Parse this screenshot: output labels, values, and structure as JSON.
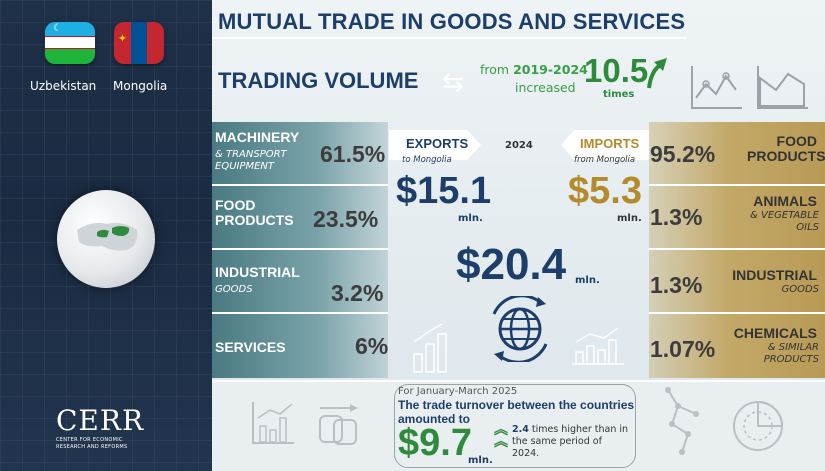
{
  "left": {
    "countries": [
      {
        "name": "Uzbekistan"
      },
      {
        "name": "Mongolia"
      }
    ],
    "logo": {
      "text": "CERR",
      "subtitle": "CENTER FOR ECONOMIC RESEARCH AND REFORMS"
    }
  },
  "header": {
    "title": "MUTUAL TRADE IN GOODS AND SERVICES"
  },
  "trading_volume": {
    "label": "TRADING VOLUME",
    "from_prefix": "from",
    "period": "2019-2024",
    "increased": "increased",
    "factor": "10.5",
    "times": "times"
  },
  "exports": {
    "label": "EXPORTS",
    "sub": "to Mongolia",
    "value": "$15.1",
    "unit": "mln.",
    "items": [
      {
        "name": "MACHINERY",
        "sub": "& TRANSPORT EQUIPMENT",
        "share": "61.5%"
      },
      {
        "name": "FOOD PRODUCTS",
        "sub": "",
        "share": "23.5%"
      },
      {
        "name": "INDUSTRIAL",
        "sub": "GOODS",
        "share": "3.2%"
      },
      {
        "name": "SERVICES",
        "sub": "",
        "share": "6%"
      }
    ]
  },
  "imports": {
    "label": "IMPORTS",
    "sub": "from Mongolia",
    "value": "$5.3",
    "unit": "mln.",
    "items": [
      {
        "name": "FOOD PRODUCTS",
        "sub": "",
        "share": "95.2%"
      },
      {
        "name": "ANIMALS",
        "sub": "& VEGETABLE OILS",
        "share": "1.3%"
      },
      {
        "name": "INDUSTRIAL",
        "sub": "GOODS",
        "share": "1.3%"
      },
      {
        "name": "CHEMICALS",
        "sub": "& SIMILAR PRODUCTS",
        "share": "1.07%"
      }
    ]
  },
  "center": {
    "year": "2024",
    "total": "$20.4",
    "total_unit": "mln."
  },
  "bottom": {
    "period": "For January-March 2025",
    "description": "The trade turnover between the countries amounted to",
    "value": "$9.7",
    "unit": "mln.",
    "note_factor": "2.4",
    "note_text": "times higher than in the same period of 2024."
  },
  "colors": {
    "navy": "#1d3e6b",
    "green": "#2e8b3c",
    "gold": "#b58a2a",
    "teal_row": "#4a7a82",
    "gold_row": "#c3a868"
  },
  "icons": [
    "line-chart-icon",
    "area-chart-icon",
    "swap-arrows-icon",
    "growth-arrow-icon",
    "bar-chart-icon",
    "globe-network-icon",
    "copy-arrow-icon",
    "network-nodes-icon",
    "pie-chart-icon"
  ]
}
